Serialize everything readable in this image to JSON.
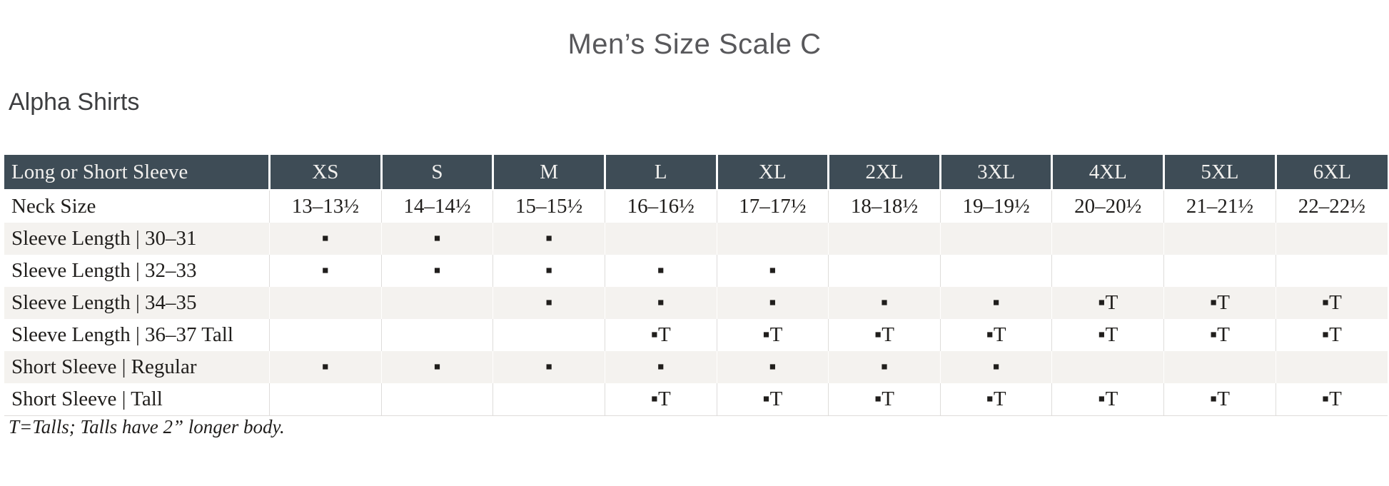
{
  "page_title": "Men’s Size Scale C",
  "section_title": "Alpha Shirts",
  "footnote": "T=Talls; Talls have 2” longer body.",
  "legend": {
    "available_mark": "▪",
    "tall_mark": "▪T"
  },
  "colors": {
    "header_bg": "#3e4c56",
    "header_text": "#f1f0ee",
    "stripe_bg": "#f4f2ef",
    "title_text": "#58585b",
    "section_text": "#3d3e40",
    "body_text": "#201e1c"
  },
  "table": {
    "header": [
      "Long or Short Sleeve",
      "XS",
      "S",
      "M",
      "L",
      "XL",
      "2XL",
      "3XL",
      "4XL",
      "5XL",
      "6XL"
    ],
    "rows": [
      {
        "label": "Neck Size",
        "cells": [
          "13–13½",
          "14–14½",
          "15–15½",
          "16–16½",
          "17–17½",
          "18–18½",
          "19–19½",
          "20–20½",
          "21–21½",
          "22–22½"
        ]
      },
      {
        "label": "Sleeve Length | 30–31",
        "cells": [
          "▪",
          "▪",
          "▪",
          "",
          "",
          "",
          "",
          "",
          "",
          ""
        ]
      },
      {
        "label": "Sleeve Length | 32–33",
        "cells": [
          "▪",
          "▪",
          "▪",
          "▪",
          "▪",
          "",
          "",
          "",
          "",
          ""
        ]
      },
      {
        "label": "Sleeve Length | 34–35",
        "cells": [
          "",
          "",
          "▪",
          "▪",
          "▪",
          "▪",
          "▪",
          "▪T",
          "▪T",
          "▪T"
        ]
      },
      {
        "label": "Sleeve Length | 36–37 Tall",
        "cells": [
          "",
          "",
          "",
          "▪T",
          "▪T",
          "▪T",
          "▪T",
          "▪T",
          "▪T",
          "▪T"
        ]
      },
      {
        "label": "Short Sleeve | Regular",
        "cells": [
          "▪",
          "▪",
          "▪",
          "▪",
          "▪",
          "▪",
          "▪",
          "",
          "",
          ""
        ]
      },
      {
        "label": "Short Sleeve | Tall",
        "cells": [
          "",
          "",
          "",
          "▪T",
          "▪T",
          "▪T",
          "▪T",
          "▪T",
          "▪T",
          "▪T"
        ]
      }
    ]
  }
}
